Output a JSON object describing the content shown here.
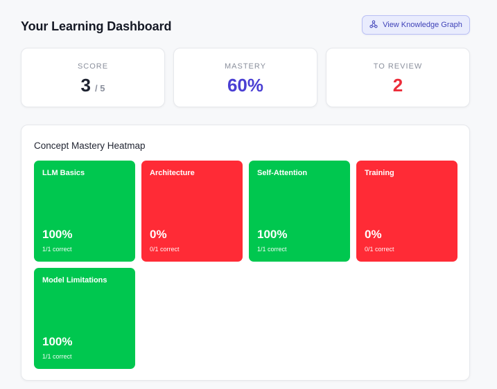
{
  "header": {
    "title": "Your Learning Dashboard",
    "graph_button": {
      "label": "View Knowledge Graph",
      "icon": "graph-nodes-icon"
    }
  },
  "stats": {
    "score": {
      "label": "SCORE",
      "value": "3",
      "total": "/ 5"
    },
    "mastery": {
      "label": "MASTERY",
      "value": "60%"
    },
    "review": {
      "label": "TO REVIEW",
      "value": "2"
    }
  },
  "heatmap": {
    "title": "Concept Mastery Heatmap",
    "colors": {
      "good": "#00c74f",
      "bad": "#ff2b36"
    },
    "tiles": [
      {
        "name": "LLM Basics",
        "percent": "100%",
        "detail": "1/1 correct",
        "status": "good"
      },
      {
        "name": "Architecture",
        "percent": "0%",
        "detail": "0/1 correct",
        "status": "bad"
      },
      {
        "name": "Self-Attention",
        "percent": "100%",
        "detail": "1/1 correct",
        "status": "good"
      },
      {
        "name": "Training",
        "percent": "0%",
        "detail": "0/1 correct",
        "status": "bad"
      },
      {
        "name": "Model Limitations",
        "percent": "100%",
        "detail": "1/1 correct",
        "status": "good"
      }
    ]
  }
}
